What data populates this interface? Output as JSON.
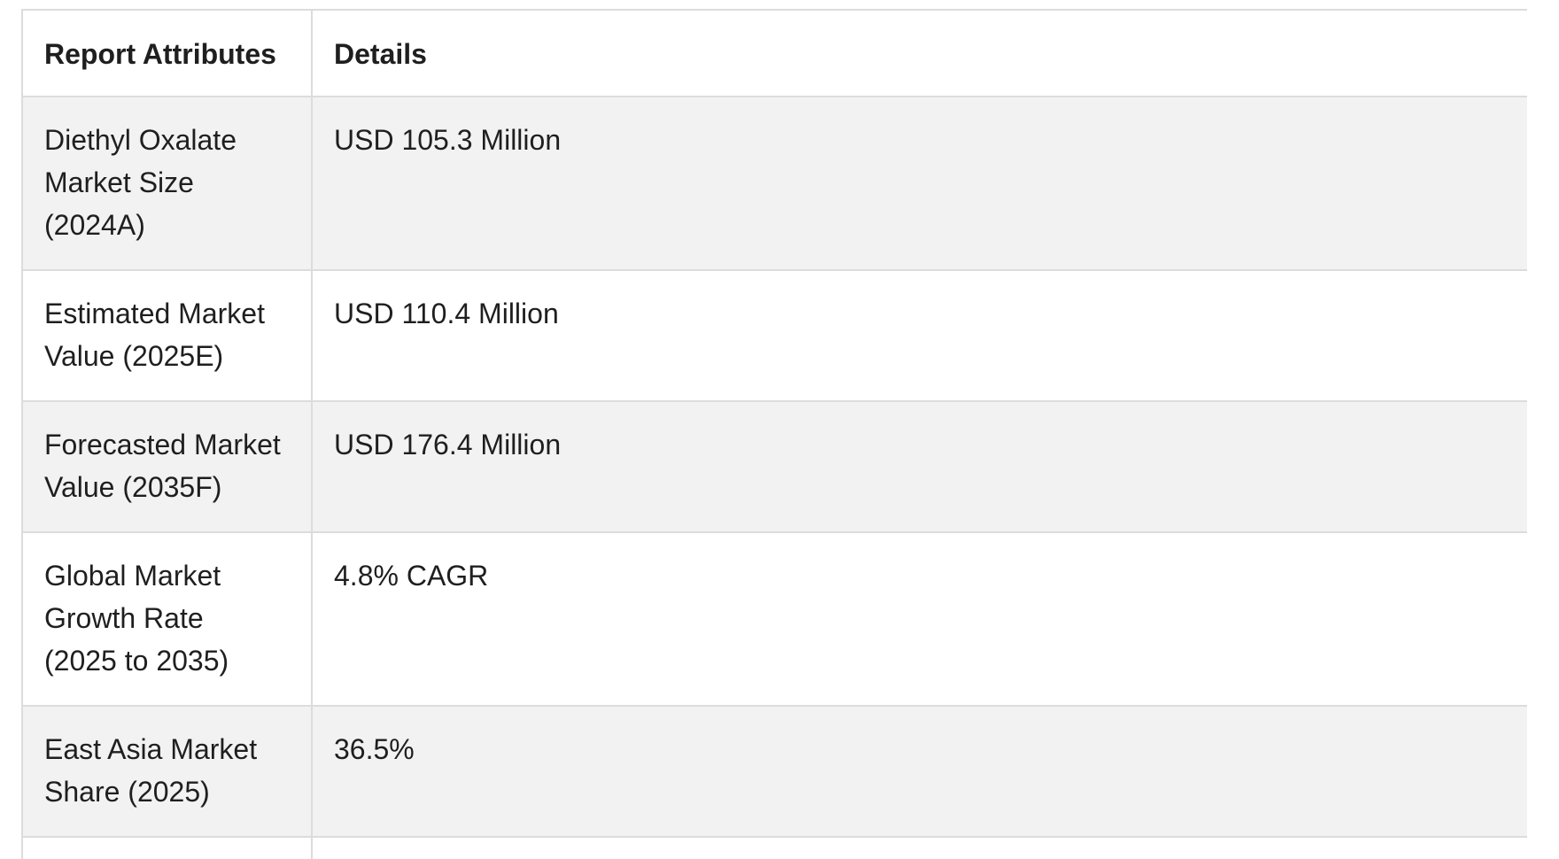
{
  "table": {
    "headers": {
      "attribute": "Report Attributes",
      "details": "Details"
    },
    "rows": [
      {
        "attribute_lines": [
          "Diethyl Oxalate",
          "Market Size",
          "(2024A)"
        ],
        "details": "USD 105.3 Million"
      },
      {
        "attribute_lines": [
          "Estimated Market",
          "Value (2025E)"
        ],
        "details": "USD 110.4 Million"
      },
      {
        "attribute_lines": [
          "Forecasted Market",
          "Value (2035F)"
        ],
        "details": "USD 176.4 Million"
      },
      {
        "attribute_lines": [
          "Global Market",
          "Growth Rate",
          "(2025 to 2035)"
        ],
        "details": "4.8% CAGR"
      },
      {
        "attribute_lines": [
          "East Asia Market",
          "Share (2025)"
        ],
        "details": "36.5%"
      },
      {
        "attribute_lines": [
          ""
        ],
        "details": ""
      }
    ]
  },
  "colors": {
    "border": "#dcdcdc",
    "shaded_row": "#f2f2f2",
    "text": "#1f1f1f"
  }
}
